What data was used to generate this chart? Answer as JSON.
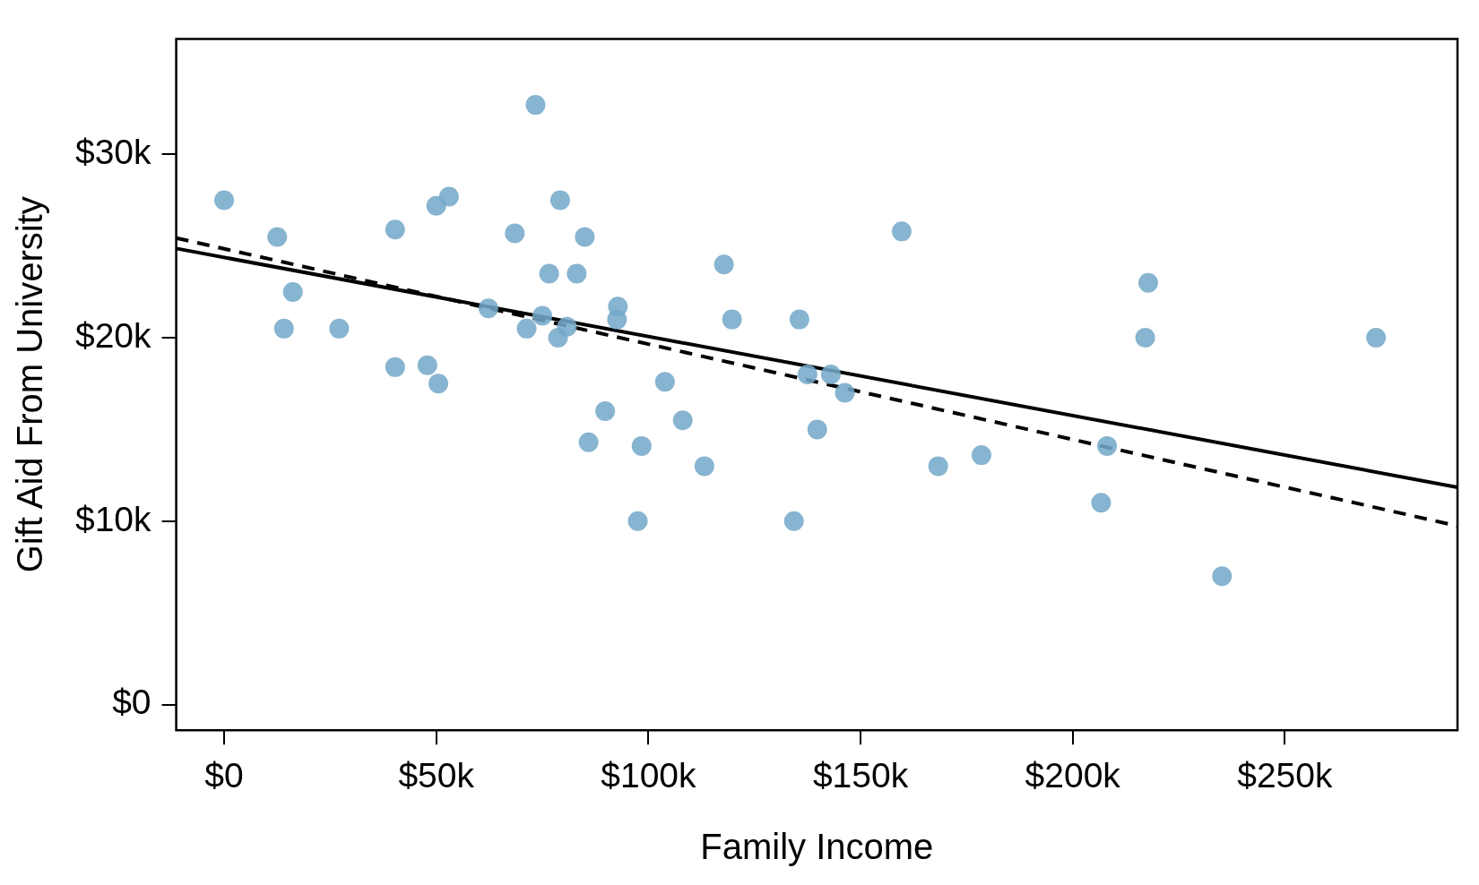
{
  "chart_data": {
    "type": "scatter",
    "xlabel": "Family Income",
    "ylabel": "Gift Aid From University",
    "xlim": [
      -11.3,
      290.7
    ],
    "ylim": [
      -1.4,
      36.3
    ],
    "xticks": [
      {
        "value": 0,
        "label": "$0"
      },
      {
        "value": 50,
        "label": "$50k"
      },
      {
        "value": 100,
        "label": "$100k"
      },
      {
        "value": 150,
        "label": "$150k"
      },
      {
        "value": 200,
        "label": "$200k"
      },
      {
        "value": 250,
        "label": "$250k"
      }
    ],
    "yticks": [
      {
        "value": 0,
        "label": "$0"
      },
      {
        "value": 10,
        "label": "$10k"
      },
      {
        "value": 20,
        "label": "$20k"
      },
      {
        "value": 30,
        "label": "$30k"
      }
    ],
    "grid": false,
    "legend": false,
    "marker": "circle",
    "series": [
      {
        "type": "scatter",
        "color": "#74a9c9",
        "x": [
          0,
          12.5,
          14.1,
          16.2,
          27.1,
          40.3,
          40.3,
          47.9,
          50,
          50.5,
          53,
          62.3,
          68.5,
          71.3,
          73.4,
          75,
          76.6,
          78.7,
          79.2,
          80.8,
          83.1,
          85,
          85.9,
          89.8,
          92.6,
          92.8,
          97.5,
          98.4,
          103.9,
          108.1,
          113.2,
          117.8,
          119.7,
          134.3,
          135.6,
          137.5,
          139.8,
          143,
          146.3,
          159.7,
          168.3,
          178.5,
          206.7,
          208.1,
          217.1,
          217.8,
          235.2,
          271.5
        ],
        "values": [
          27.5,
          25.5,
          20.5,
          22.5,
          20.5,
          25.9,
          18.4,
          18.5,
          27.2,
          17.5,
          27.7,
          21.6,
          25.7,
          20.5,
          32.7,
          21.2,
          23.5,
          20,
          27.5,
          20.6,
          23.5,
          25.5,
          14.3,
          16,
          21,
          21.7,
          10,
          14.1,
          17.6,
          15.5,
          13,
          24,
          21,
          10,
          21,
          18,
          15,
          18,
          17,
          25.8,
          13,
          13.6,
          11,
          14.1,
          20,
          23,
          7,
          20
        ]
      },
      {
        "type": "line",
        "color": "#000000",
        "line_style": "solid",
        "marker": "none",
        "x": [
          -11.3,
          290.7
        ],
        "values": [
          24.87,
          11.85
        ]
      },
      {
        "type": "line",
        "color": "#000000",
        "line_style": "dashed",
        "marker": "none",
        "x": [
          -11.3,
          290.7
        ],
        "values": [
          25.44,
          9.74
        ]
      }
    ]
  }
}
